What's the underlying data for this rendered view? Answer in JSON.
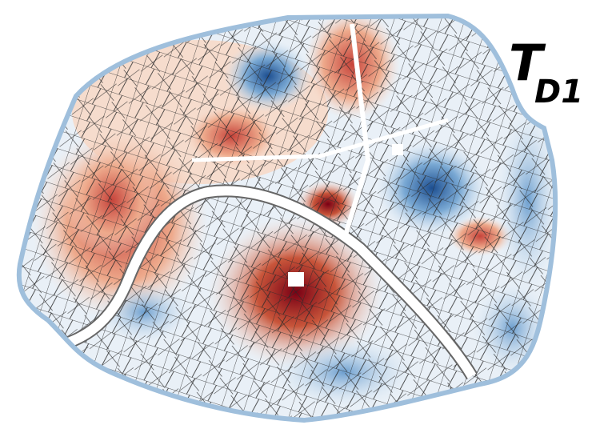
{
  "label": {
    "main": "T",
    "subscript": "D1"
  }
}
